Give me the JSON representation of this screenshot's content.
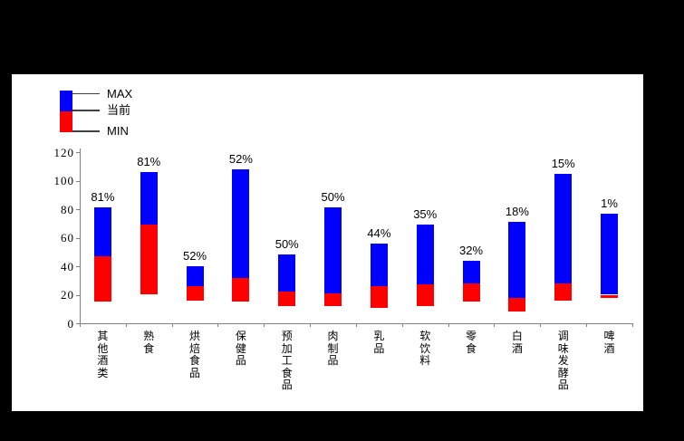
{
  "page": {
    "background_color": "#000000",
    "panel_background": "#ffffff"
  },
  "chart_data": {
    "type": "bar",
    "subtype": "floating-range-bars",
    "title": "",
    "xlabel": "",
    "ylabel": "",
    "grid": false,
    "ylim": [
      0,
      120
    ],
    "yticks": [
      "0",
      "20",
      "40",
      "60",
      "80",
      "100",
      "120"
    ],
    "legend_position": "top-left",
    "legend": [
      {
        "label": "MAX",
        "swatch": "blue-top"
      },
      {
        "label": "当前",
        "swatch": "boundary"
      },
      {
        "label": "MIN",
        "swatch": "red-bottom"
      }
    ],
    "colors": {
      "max_segment": "#0000fe",
      "min_segment": "#fe0000",
      "axis": "#808080",
      "text": "#000000"
    },
    "categories": [
      "其他酒类",
      "熟食",
      "烘焙食品",
      "保健品",
      "预加工食品",
      "肉制品",
      "乳品",
      "软饮料",
      "零食",
      "白酒",
      "调味发酵品",
      "啤酒"
    ],
    "bars": [
      {
        "category": "其他酒类",
        "min": 15,
        "current": 47,
        "max": 81,
        "label": "81%"
      },
      {
        "category": "熟食",
        "min": 20,
        "current": 69,
        "max": 106,
        "label": "81%"
      },
      {
        "category": "烘焙食品",
        "min": 16,
        "current": 26,
        "max": 40,
        "label": "52%"
      },
      {
        "category": "保健品",
        "min": 15,
        "current": 32,
        "max": 108,
        "label": "52%"
      },
      {
        "category": "预加工食品",
        "min": 12,
        "current": 22,
        "max": 48,
        "label": "50%"
      },
      {
        "category": "肉制品",
        "min": 12,
        "current": 21,
        "max": 81,
        "label": "50%"
      },
      {
        "category": "乳品",
        "min": 11,
        "current": 26,
        "max": 56,
        "label": "44%"
      },
      {
        "category": "软饮料",
        "min": 12,
        "current": 27,
        "max": 69,
        "label": "35%"
      },
      {
        "category": "零食",
        "min": 15,
        "current": 28,
        "max": 44,
        "label": "32%"
      },
      {
        "category": "白酒",
        "min": 8,
        "current": 18,
        "max": 71,
        "label": "18%"
      },
      {
        "category": "调味发酵品",
        "min": 16,
        "current": 28,
        "max": 105,
        "label": "15%"
      },
      {
        "category": "啤酒",
        "min": 18,
        "current": 20,
        "max": 77,
        "label": "1%"
      }
    ]
  }
}
